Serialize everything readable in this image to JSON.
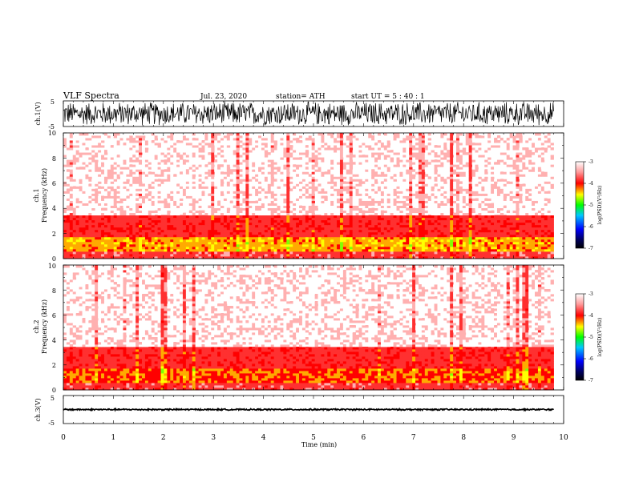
{
  "header": {
    "title": "VLF  Spectra",
    "date": "Jul.  23, 2020",
    "station": "station= ATH",
    "start": "start  UT  =    5  : 40 : 1"
  },
  "chart_data": [
    {
      "type": "line",
      "panel": "ch1-waveform",
      "ylabel": "ch.1(V)",
      "ylim": [
        -5,
        5
      ],
      "yticks": [
        "5",
        "-5"
      ],
      "xlim": [
        0,
        10
      ],
      "amplitude": 5,
      "x_end": 9.8
    },
    {
      "type": "heatmap",
      "panel": "ch1-spectrogram",
      "ylabel": "ch.1\nFrequency  (kHz)",
      "ylabel_lines": [
        "ch.1",
        "Frequency  (kHz)"
      ],
      "ylim": [
        0,
        10
      ],
      "yticks": [
        "0",
        "2",
        "4",
        "6",
        "8",
        "10"
      ],
      "xlim": [
        0,
        10
      ],
      "x_end": 9.8,
      "bands": [
        {
          "from": 0,
          "to": 0.6,
          "level": -3.9
        },
        {
          "from": 0.6,
          "to": 1.8,
          "level": -4.6
        },
        {
          "from": 1.8,
          "to": 3.4,
          "level": -4.0
        },
        {
          "from": 3.4,
          "to": 10,
          "level": -3.3
        }
      ],
      "colorbar": {
        "label": "log(PSD)(V²/Hz)",
        "range": [
          -7,
          -3
        ],
        "ticks": [
          "-3",
          "-4",
          "-5",
          "-6",
          "-7"
        ]
      }
    },
    {
      "type": "heatmap",
      "panel": "ch2-spectrogram",
      "ylabel": "ch.2\nFrequency  (kHz)",
      "ylabel_lines": [
        "ch.2",
        "Frequency  (kHz)"
      ],
      "ylim": [
        0,
        10
      ],
      "yticks": [
        "0",
        "2",
        "4",
        "6",
        "8",
        "10"
      ],
      "xlim": [
        0,
        10
      ],
      "x_end": 9.8,
      "bands": [
        {
          "from": 0,
          "to": 0.6,
          "level": -3.9
        },
        {
          "from": 0.6,
          "to": 1.8,
          "level": -4.4
        },
        {
          "from": 1.8,
          "to": 3.4,
          "level": -4.0
        },
        {
          "from": 3.4,
          "to": 10,
          "level": -3.3
        }
      ],
      "colorbar": {
        "label": "log(PSD)(V²/Hz)",
        "range": [
          -7,
          -3
        ],
        "ticks": [
          "-3",
          "-4",
          "-5",
          "-6",
          "-7"
        ]
      }
    },
    {
      "type": "line",
      "panel": "ch3-waveform",
      "ylabel": "ch.3(V)",
      "ylim": [
        -5,
        5
      ],
      "yticks": [
        "5",
        "-5"
      ],
      "xlim": [
        0,
        10
      ],
      "amplitude": 0.3,
      "x_end": 9.8,
      "xlabel": "Time  (min)",
      "xticks": [
        "0",
        "1",
        "2",
        "3",
        "4",
        "5",
        "6",
        "7",
        "8",
        "9",
        "10"
      ]
    }
  ]
}
